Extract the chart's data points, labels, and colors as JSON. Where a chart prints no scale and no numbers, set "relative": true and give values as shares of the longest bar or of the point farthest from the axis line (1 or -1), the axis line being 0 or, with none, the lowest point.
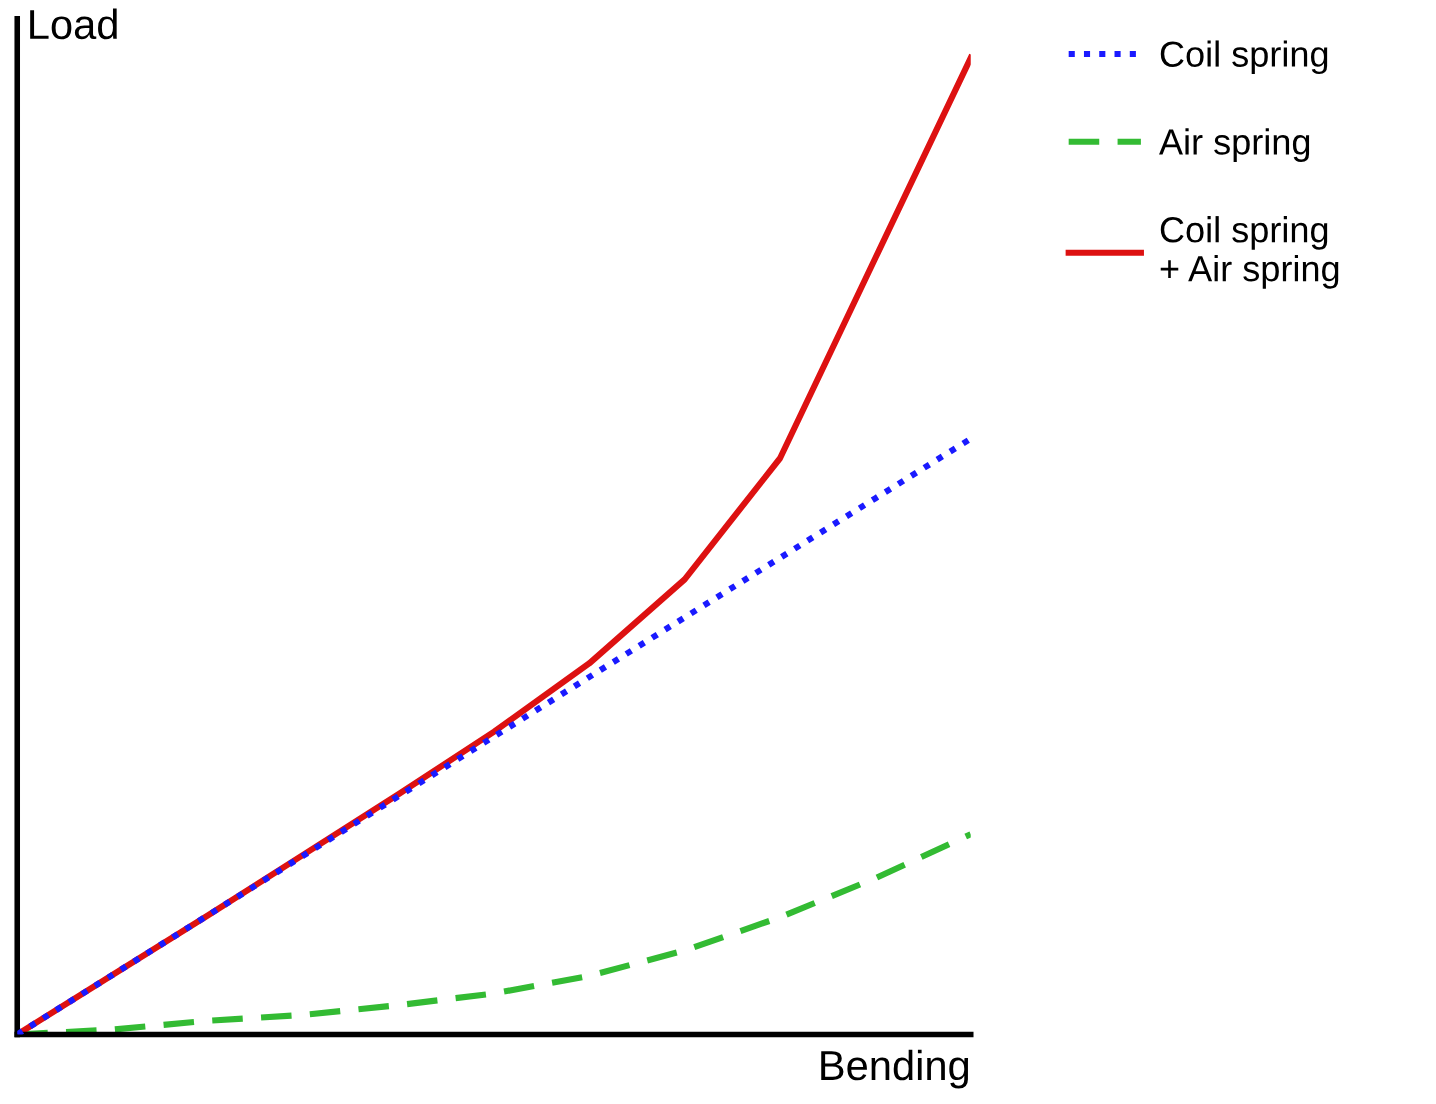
{
  "chart_data": {
    "type": "line",
    "relative": true,
    "xlabel": "Bending",
    "ylabel": "Load",
    "categories": [
      null,
      null,
      null,
      null,
      null,
      null,
      null,
      null,
      null,
      null,
      null
    ],
    "series": [
      {
        "name": "Coil spring",
        "color": "#1a1aff",
        "line_style": "dotted",
        "values": [
          0,
          0.061,
          0.122,
          0.183,
          0.244,
          0.305,
          0.366,
          0.427,
          0.488,
          0.549,
          0.61
        ]
      },
      {
        "name": "Air spring",
        "color": "#33bb33",
        "line_style": "dashed",
        "values": [
          0,
          0.005,
          0.014,
          0.02,
          0.03,
          0.042,
          0.06,
          0.086,
          0.12,
          0.16,
          0.205
        ]
      },
      {
        "name": "Coil spring\n+ Air spring",
        "color": "#dd1111",
        "line_style": "solid",
        "values": [
          0,
          0.061,
          0.122,
          0.184,
          0.246,
          0.31,
          0.38,
          0.466,
          0.59,
          0.795,
          1.0
        ]
      }
    ],
    "legend": "right",
    "grid": false,
    "marker": "none"
  }
}
